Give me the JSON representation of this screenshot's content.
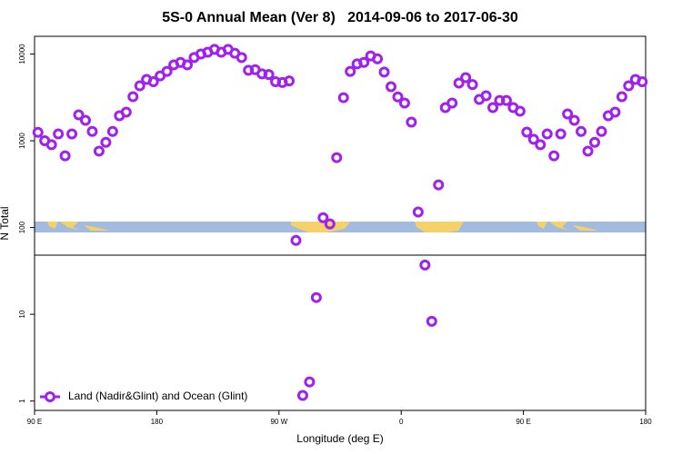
{
  "chart_data": {
    "type": "scatter",
    "title": "5S-0 Annual Mean (Ver 8)   2014-09-06 to 2017-06-30",
    "xlabel": "Longitude (deg E)",
    "ylabel": "N Total",
    "log_y": true,
    "legend": "bottom-left",
    "xlim": [
      90,
      540
    ],
    "xticks": [
      {
        "value": 90,
        "label": "90 E"
      },
      180,
      {
        "value": 270,
        "label": "90 W"
      },
      {
        "value": 360,
        "label": "0"
      },
      {
        "value": 450,
        "label": "90 E"
      },
      {
        "value": 540,
        "label": "180"
      }
    ],
    "ylim": [
      0.78,
      16000
    ],
    "yticks": [
      1,
      10,
      100,
      1000,
      10000
    ],
    "x": [
      92.5,
      97.5,
      102.5,
      107.5,
      112.5,
      117.5,
      122.5,
      127.5,
      132.5,
      137.5,
      142.5,
      147.5,
      152.5,
      157.5,
      162.5,
      167.5,
      172.5,
      177.5,
      182.5,
      187.5,
      192.5,
      197.5,
      202.5,
      207.5,
      212.5,
      217.5,
      222.5,
      227.5,
      232.5,
      237.5,
      242.5,
      247.5,
      252.5,
      257.5,
      262.5,
      267.5,
      272.5,
      277.5,
      282.5,
      287.5,
      292.5,
      297.5,
      302.5,
      307.5,
      312.5,
      317.5,
      322.5,
      327.5,
      332.5,
      337.5,
      342.5,
      347.5,
      352.5,
      357.5,
      362.5,
      367.5,
      372.5,
      377.5,
      382.5,
      387.5,
      392.5,
      397.5,
      402.5,
      407.5,
      412.5,
      417.5,
      422.5,
      427.5,
      432.5,
      437.5,
      442.5,
      447.5,
      452.5,
      457.5,
      462.5,
      467.5,
      472.5,
      477.5,
      482.5,
      487.5,
      492.5,
      497.5,
      502.5,
      507.5,
      512.5,
      517.5,
      522.5,
      527.5,
      532.5,
      537.5
    ],
    "series": [
      {
        "name": "Land (Nadir&Glint) and Ocean (Glint)",
        "color": "#a020f0",
        "values": [
          1250,
          1000,
          900,
          1200,
          670,
          1200,
          1990,
          1720,
          1280,
          760,
          960,
          1280,
          1940,
          2140,
          3220,
          4300,
          5100,
          4800,
          5600,
          6300,
          7500,
          8000,
          7500,
          9100,
          10000,
          10500,
          11300,
          10500,
          11300,
          10200,
          9100,
          6500,
          6600,
          5900,
          5800,
          4800,
          4700,
          4900,
          71,
          1.16,
          1.66,
          15.6,
          130,
          110,
          640,
          3140,
          6300,
          7700,
          8000,
          9500,
          8800,
          6200,
          4200,
          3200,
          2720,
          1640,
          151,
          37,
          8.3,
          310,
          2410,
          2720,
          4620,
          5350,
          4450,
          3000,
          3300,
          2410,
          2920,
          2920,
          2410,
          2190,
          1260,
          1040,
          900,
          1200,
          670,
          1200,
          2040,
          1720,
          1280,
          760,
          960,
          1280,
          1940,
          2140,
          3220,
          4300,
          5100,
          4800
        ]
      }
    ]
  }
}
